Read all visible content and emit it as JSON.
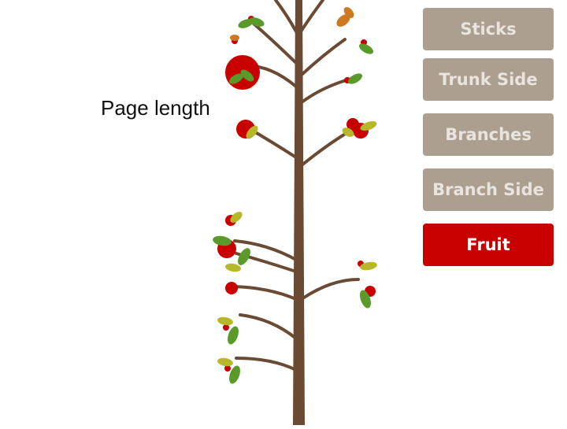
{
  "label": "Page length",
  "buttons": [
    {
      "label": "Sticks",
      "state": "inactive"
    },
    {
      "label": "Trunk Side",
      "state": "inactive"
    },
    {
      "label": "Branches",
      "state": "inactive"
    },
    {
      "label": "Branch Side",
      "state": "inactive"
    },
    {
      "label": "Fruit",
      "state": "active"
    }
  ],
  "colors": {
    "trunk": "#6b4a34",
    "fruit": "#c90000",
    "leaf_green": "#5a9a2a",
    "leaf_yellow": "#b7b72a",
    "leaf_orange": "#cc7a22",
    "button_inactive": "#ad9f8f",
    "button_active": "#c90000",
    "button_text": "#e9e4de"
  }
}
